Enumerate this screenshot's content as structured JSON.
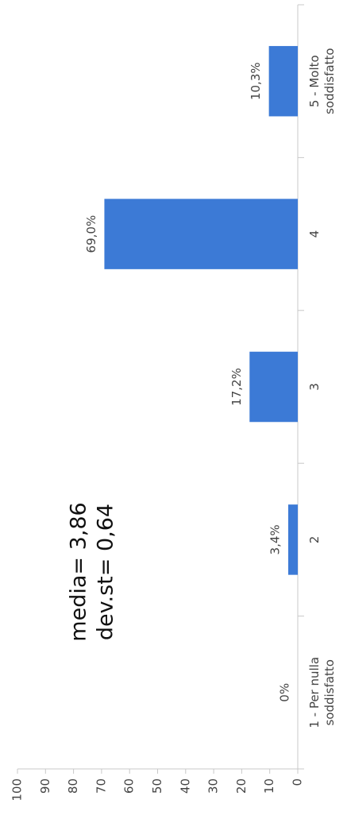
{
  "chart_data": {
    "type": "bar",
    "categories": [
      "1 - Per nulla soddisfatto",
      "2",
      "3",
      "4",
      "5 - Molto soddisfatto"
    ],
    "values": [
      0,
      3.4,
      17.2,
      69.0,
      10.3
    ],
    "value_labels": [
      "0%",
      "3,4%",
      "17,2%",
      "69,0%",
      "10,3%"
    ],
    "color": "#3c7ad6",
    "ylim": [
      0,
      100
    ],
    "yticks": [
      0,
      10,
      20,
      30,
      40,
      50,
      60,
      70,
      80,
      90,
      100
    ],
    "grid": false,
    "annotations": [
      "media= 3,86",
      "dev.st= 0,64"
    ]
  }
}
